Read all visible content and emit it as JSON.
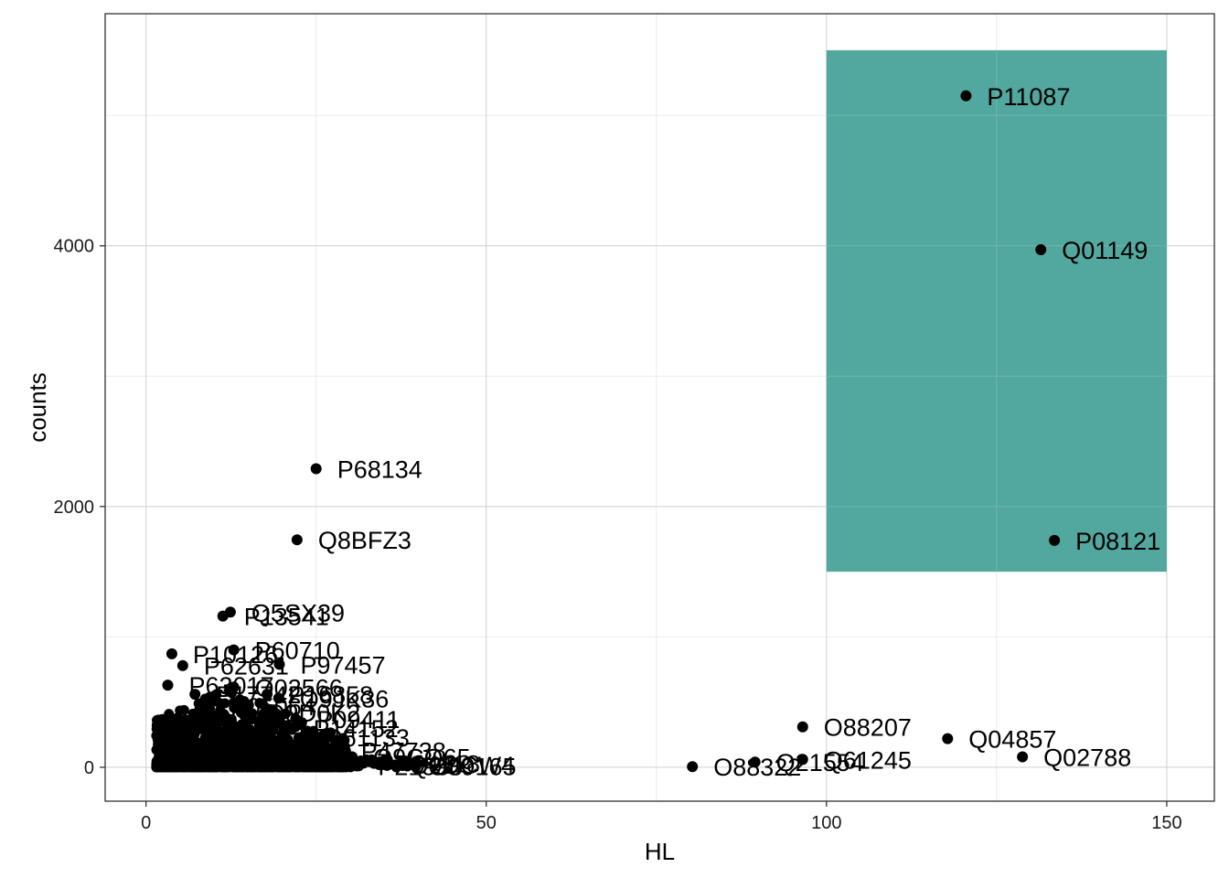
{
  "chart_data": {
    "type": "scatter",
    "title": "",
    "xlabel": "HL",
    "ylabel": "counts",
    "xlim": [
      -6,
      157
    ],
    "ylim": [
      -260,
      5780
    ],
    "x_ticks": [
      0,
      50,
      100,
      150
    ],
    "y_ticks": [
      0,
      2000,
      4000
    ],
    "x_minor": [
      25,
      75,
      125
    ],
    "y_minor": [
      1000,
      3000,
      5000
    ],
    "grid": true,
    "highlight_region": {
      "x": [
        100,
        150
      ],
      "y": [
        1500,
        5500
      ],
      "color": "#52a79e"
    },
    "point_color": "#000000",
    "labeled_points": [
      {
        "label": "P11087",
        "x": 120.5,
        "y": 5150
      },
      {
        "label": "Q01149",
        "x": 131.5,
        "y": 3970
      },
      {
        "label": "P08121",
        "x": 133.5,
        "y": 1740
      },
      {
        "label": "P68134",
        "x": 25.0,
        "y": 2290
      },
      {
        "label": "Q8BFZ3",
        "x": 22.2,
        "y": 1745
      },
      {
        "label": "Q5SX39",
        "x": 12.4,
        "y": 1190
      },
      {
        "label": "P13541",
        "x": 11.3,
        "y": 1160
      },
      {
        "label": "P10126",
        "x": 3.8,
        "y": 870
      },
      {
        "label": "P60710",
        "x": 12.9,
        "y": 900
      },
      {
        "label": "P62631",
        "x": 5.4,
        "y": 780
      },
      {
        "label": "P97457",
        "x": 19.6,
        "y": 790
      },
      {
        "label": "P63017",
        "x": 3.2,
        "y": 630
      },
      {
        "label": "Q02566",
        "x": 12.9,
        "y": 615
      },
      {
        "label": "P16858",
        "x": 17.8,
        "y": 560
      },
      {
        "label": "Q9JK36",
        "x": 19.5,
        "y": 530
      },
      {
        "label": "P17742",
        "x": 7.2,
        "y": 560
      },
      {
        "label": "Q9D0K2",
        "x": 14.5,
        "y": 420
      },
      {
        "label": "P05064",
        "x": 9.3,
        "y": 470
      },
      {
        "label": "P09411",
        "x": 22.0,
        "y": 370
      },
      {
        "label": "P14152",
        "x": 21.5,
        "y": 300
      },
      {
        "label": "Q61133",
        "x": 23.0,
        "y": 230
      },
      {
        "label": "P47738",
        "x": 28.5,
        "y": 130
      },
      {
        "label": "Q9CQ65",
        "x": 30.3,
        "y": 80
      },
      {
        "label": "P04418",
        "x": 33.5,
        "y": 30
      },
      {
        "label": "Q9DCW4",
        "x": 35.6,
        "y": 20
      },
      {
        "label": "P21550",
        "x": 31.0,
        "y": 10
      },
      {
        "label": "O89165",
        "x": 38.4,
        "y": 10
      },
      {
        "label": "O88207",
        "x": 96.5,
        "y": 310
      },
      {
        "label": "Q04857",
        "x": 117.8,
        "y": 220
      },
      {
        "label": "Q02788",
        "x": 128.8,
        "y": 80
      },
      {
        "label": "Q61245",
        "x": 96.5,
        "y": 60
      },
      {
        "label": "Q21554",
        "x": 89.5,
        "y": 40
      },
      {
        "label": "O88322",
        "x": 80.3,
        "y": 5
      }
    ]
  }
}
